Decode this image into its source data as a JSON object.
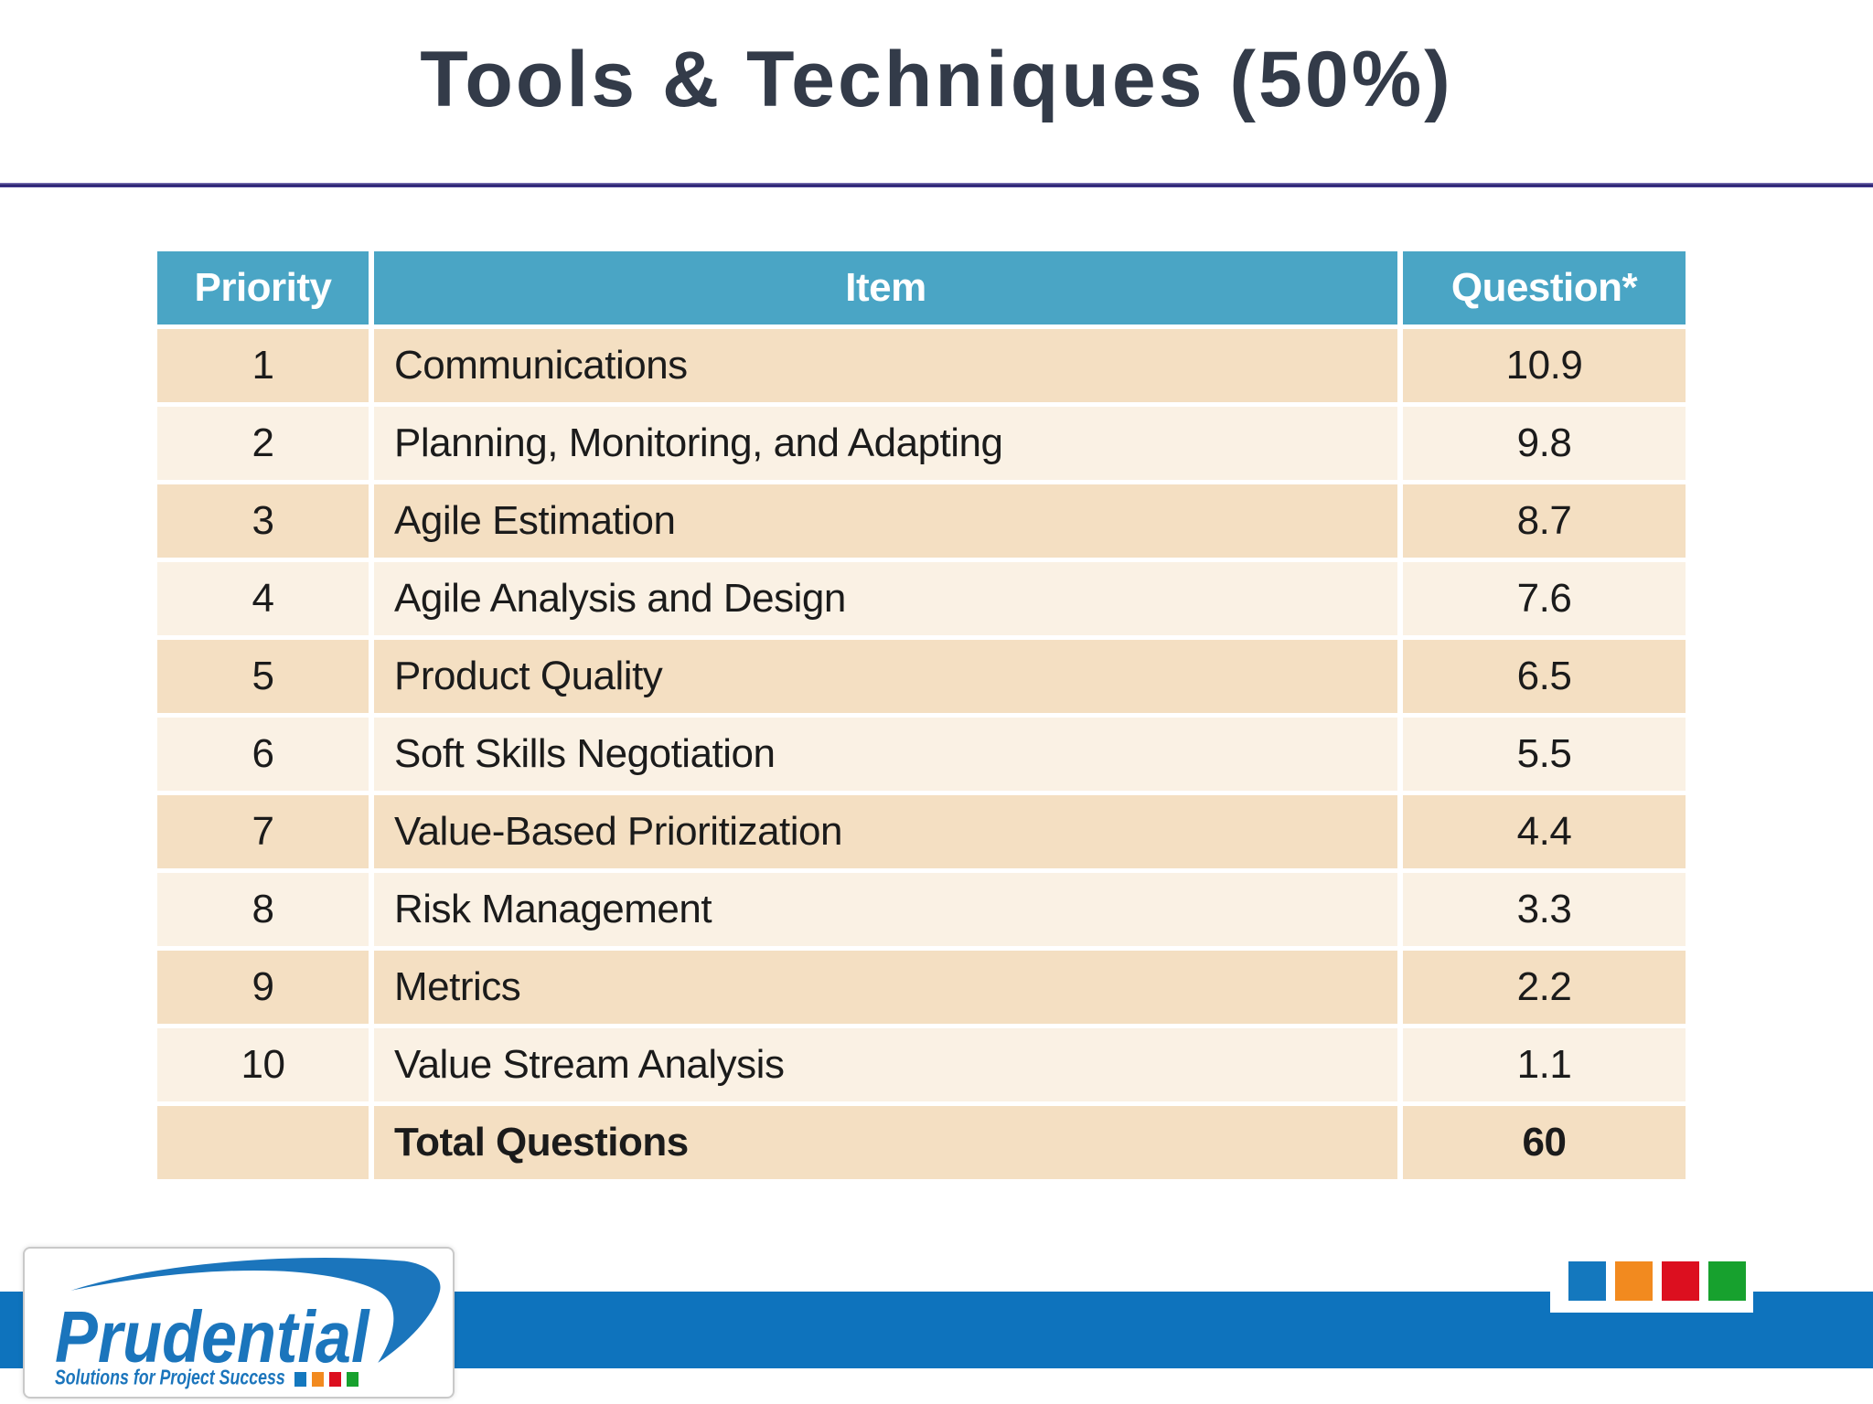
{
  "slide": {
    "title": "Tools & Techniques (50%)"
  },
  "table": {
    "headers": [
      "Priority",
      "Item",
      "Question*"
    ],
    "rows": [
      {
        "priority": "1",
        "item": "Communications",
        "question": "10.9"
      },
      {
        "priority": "2",
        "item": "Planning, Monitoring, and Adapting",
        "question": "9.8"
      },
      {
        "priority": "3",
        "item": "Agile Estimation",
        "question": "8.7"
      },
      {
        "priority": "4",
        "item": "Agile Analysis and Design",
        "question": "7.6"
      },
      {
        "priority": "5",
        "item": "Product Quality",
        "question": "6.5"
      },
      {
        "priority": "6",
        "item": "Soft Skills Negotiation",
        "question": "5.5"
      },
      {
        "priority": "7",
        "item": "Value-Based Prioritization",
        "question": "4.4"
      },
      {
        "priority": "8",
        "item": "Risk Management",
        "question": "3.3"
      },
      {
        "priority": "9",
        "item": "Metrics",
        "question": "2.2"
      },
      {
        "priority": "10",
        "item": "Value Stream Analysis",
        "question": "1.1"
      }
    ],
    "total_row": {
      "priority": "",
      "item": "Total Questions",
      "question": "60"
    }
  },
  "footer": {
    "logo": {
      "brand": "Prudential",
      "tagline": "Solutions for Project Success"
    },
    "accent_squares": [
      "#1478BE",
      "#F28A1F",
      "#DC0F1F",
      "#17A12E"
    ]
  },
  "colors": {
    "title_text": "#333B49",
    "header_bg": "#4AA5C5",
    "row_dark": "#F4DFC2",
    "row_light": "#FAF1E4",
    "footer_bar": "#0E73BD",
    "brand_blue": "#1B75BC"
  }
}
